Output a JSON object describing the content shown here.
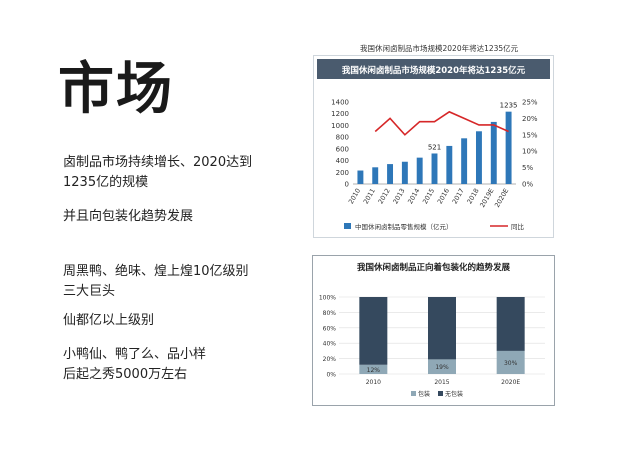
{
  "left": {
    "title": "市场",
    "p1": "卤制品市场持续增长、2020达到\n1235亿的规模",
    "p2": "并且向包装化趋势发展",
    "p3": "周黑鸭、绝味、煌上煌10亿级别\n三大巨头",
    "p4": "仙都亿以上级别",
    "p5": "小鸭仙、鸭了么、品小样\n后起之秀5000万左右"
  },
  "chart_data": [
    {
      "type": "bar",
      "caption": "我国休闲卤制品市场规模2020年将达1235亿元",
      "title": "我国休闲卤制品市场规模2020年将达1235亿元",
      "categories": [
        "2010",
        "2011",
        "2012",
        "2013",
        "2014",
        "2015",
        "2016",
        "2017",
        "2018",
        "2019E",
        "2020E"
      ],
      "series": [
        {
          "name": "中国休闲卤制品零售规模（亿元）",
          "type": "bar",
          "values": [
            230,
            285,
            340,
            380,
            450,
            521,
            650,
            780,
            900,
            1060,
            1235
          ],
          "color": "#2e77b8"
        },
        {
          "name": "同比",
          "type": "line",
          "axis": "right",
          "values": [
            null,
            0.16,
            0.2,
            0.15,
            0.19,
            0.19,
            0.22,
            0.2,
            0.18,
            0.18,
            0.16
          ],
          "color": "#d62728"
        }
      ],
      "data_labels": [
        {
          "category": "2015",
          "text": "521"
        },
        {
          "category": "2020E",
          "text": "1235"
        }
      ],
      "ylim": [
        0,
        1400
      ],
      "yticks": [
        "0",
        "200",
        "400",
        "600",
        "800",
        "1000",
        "1200",
        "1400"
      ],
      "y2lim": [
        0,
        0.25
      ],
      "y2ticks": [
        "0%",
        "5%",
        "10%",
        "15%",
        "20%",
        "25%"
      ],
      "title_bar_color": "#4a5b6e",
      "legend_position": "bottom"
    },
    {
      "type": "bar",
      "stacked": true,
      "title": "我国休闲卤制品正向着包装化的趋势发展",
      "categories": [
        "2010",
        "2015",
        "2020E"
      ],
      "series": [
        {
          "name": "包装",
          "values": [
            0.12,
            0.19,
            0.3
          ],
          "labels": [
            "12%",
            "19%",
            "30%"
          ],
          "color": "#8fa8b6"
        },
        {
          "name": "无包装",
          "values": [
            0.88,
            0.81,
            0.7
          ],
          "color": "#35495e"
        }
      ],
      "ylim": [
        0,
        1
      ],
      "yticks": [
        "0%",
        "20%",
        "40%",
        "60%",
        "80%",
        "100%"
      ],
      "legend_position": "bottom"
    }
  ]
}
